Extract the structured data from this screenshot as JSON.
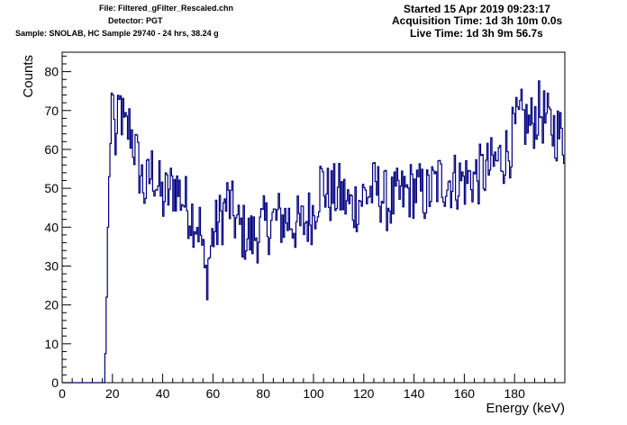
{
  "header": {
    "file": "File: Filtered_gFilter_Rescaled.chn",
    "detector": "Detector: PGT",
    "sample": "Sample: SNOLAB, HC Sample 29740 - 24 hrs, 38.24 g",
    "started": "Started 15 Apr 2019 09:23:17",
    "acquisition": "Acquisition Time: 1d 3h 10m 0.0s",
    "live": "Live Time: 1d 3h 9m 56.7s"
  },
  "chart_data": {
    "type": "histogram",
    "xlabel": "Energy (keV)",
    "ylabel": "Counts",
    "xlim": [
      0,
      200
    ],
    "ylim": [
      0,
      85
    ],
    "xticks": [
      0,
      20,
      40,
      60,
      80,
      100,
      120,
      140,
      160,
      180
    ],
    "yticks": [
      0,
      10,
      20,
      30,
      40,
      50,
      60,
      70,
      80
    ],
    "line_color": "#000080",
    "bin_width_keV": 0.5,
    "anchors": [
      [
        0,
        0
      ],
      [
        17.0,
        0
      ],
      [
        17.5,
        15
      ],
      [
        18.0,
        29
      ],
      [
        18.5,
        51
      ],
      [
        19.0,
        55
      ],
      [
        19.5,
        68
      ],
      [
        20.0,
        81
      ],
      [
        20.5,
        67
      ],
      [
        21.5,
        60
      ],
      [
        23,
        72
      ],
      [
        25,
        64
      ],
      [
        27,
        66
      ],
      [
        30,
        57
      ],
      [
        33,
        49
      ],
      [
        36,
        55
      ],
      [
        40,
        47
      ],
      [
        45,
        51
      ],
      [
        50,
        45
      ],
      [
        55,
        40
      ],
      [
        57,
        26
      ],
      [
        60,
        38
      ],
      [
        63,
        42
      ],
      [
        66,
        47
      ],
      [
        70,
        40
      ],
      [
        75,
        37
      ],
      [
        80,
        40
      ],
      [
        85,
        42
      ],
      [
        90,
        42
      ],
      [
        95,
        40
      ],
      [
        100,
        44
      ],
      [
        103,
        52
      ],
      [
        106,
        48
      ],
      [
        110,
        49
      ],
      [
        115,
        45
      ],
      [
        120,
        48
      ],
      [
        125,
        50
      ],
      [
        130,
        46
      ],
      [
        135,
        48
      ],
      [
        140,
        50
      ],
      [
        145,
        48
      ],
      [
        150,
        52
      ],
      [
        155,
        52
      ],
      [
        160,
        52
      ],
      [
        165,
        53
      ],
      [
        170,
        55
      ],
      [
        175,
        58
      ],
      [
        178,
        60
      ],
      [
        180,
        65
      ],
      [
        183,
        68
      ],
      [
        186,
        66
      ],
      [
        190,
        70
      ],
      [
        194,
        66
      ],
      [
        196,
        65
      ],
      [
        198,
        64
      ],
      [
        199.5,
        62
      ]
    ],
    "noise_amplitude": 8,
    "grid": false,
    "legend": "none"
  },
  "colors": {
    "data": "#000080",
    "axes": "#000000",
    "background": "#ffffff"
  }
}
